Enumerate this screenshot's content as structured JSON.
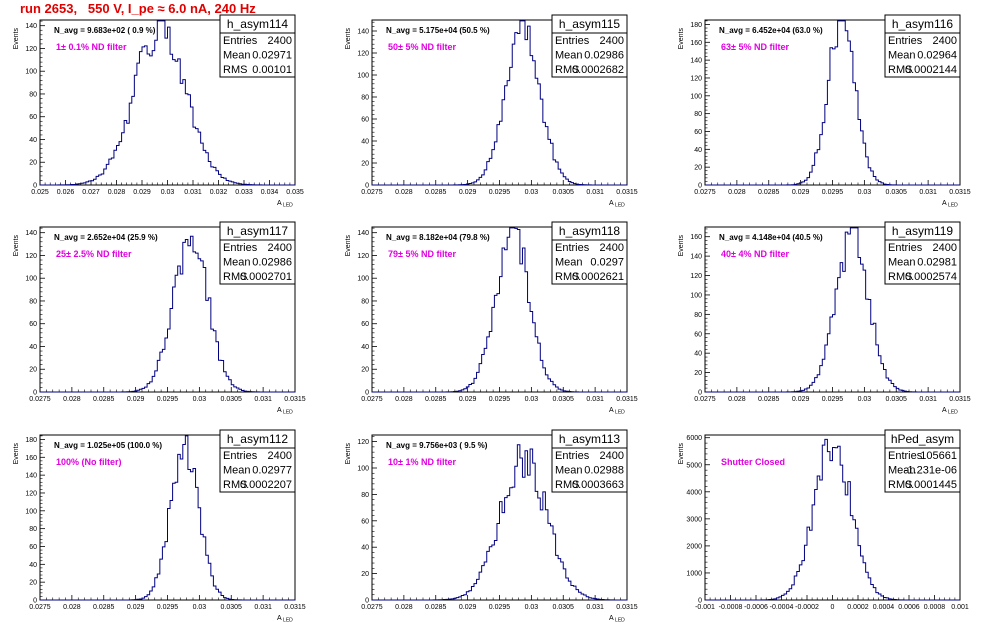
{
  "title": "run 2653,   550 V, I_pe ≈ 6.0 nA, 240 Hz",
  "chart_data": [
    {
      "type": "histogram",
      "name": "h_asym114",
      "n_avg": "N_avg = 9.683e+02 ( 0.9 %)",
      "annotation": "1± 0.1% ND filter",
      "stats": [
        [
          "Entries",
          "2400"
        ],
        [
          "Mean",
          "0.02971"
        ],
        [
          "RMS",
          "0.00101"
        ]
      ],
      "xlabel": "A_LED",
      "ylabel": "Events",
      "xlim": [
        0.025,
        0.035
      ],
      "ylim": [
        0,
        145
      ],
      "xticks": [
        0.025,
        0.026,
        0.027,
        0.028,
        0.029,
        0.03,
        0.031,
        0.032,
        0.033,
        0.034,
        0.035
      ],
      "xtick_labels": [
        "0.025",
        "0.026",
        "0.027",
        "0.028",
        "0.029",
        "0.03",
        "0.031",
        "0.032",
        "0.033",
        "0.034",
        "0.035"
      ],
      "yticks": [
        0,
        20,
        40,
        60,
        80,
        100,
        120,
        140
      ],
      "peak": 137,
      "mean": 0.02971,
      "sigma": 0.00101
    },
    {
      "type": "histogram",
      "name": "h_asym115",
      "n_avg": "N_avg = 5.175e+04 (50.5 %)",
      "annotation": "50± 5% ND filter",
      "stats": [
        [
          "Entries",
          "2400"
        ],
        [
          "Mean",
          "0.02986"
        ],
        [
          "RMS",
          "0.0002682"
        ]
      ],
      "xlabel": "A_LED",
      "ylabel": "Events",
      "xlim": [
        0.0275,
        0.0315
      ],
      "ylim": [
        0,
        150
      ],
      "xticks": [
        0.0275,
        0.028,
        0.0285,
        0.029,
        0.0295,
        0.03,
        0.0305,
        0.031,
        0.0315
      ],
      "xtick_labels": [
        "0.0275",
        "0.028",
        "0.0285",
        "0.029",
        "0.0295",
        "0.03",
        "0.0305",
        "0.031",
        "0.0315"
      ],
      "yticks": [
        0,
        20,
        40,
        60,
        80,
        100,
        120,
        140
      ],
      "peak": 146,
      "mean": 0.02986,
      "sigma": 0.0002682
    },
    {
      "type": "histogram",
      "name": "h_asym116",
      "n_avg": "N_avg = 6.452e+04 (63.0 %)",
      "annotation": "63± 5% ND filter",
      "stats": [
        [
          "Entries",
          "2400"
        ],
        [
          "Mean",
          "0.02964"
        ],
        [
          "RMS",
          "0.0002144"
        ]
      ],
      "xlabel": "A_LED",
      "ylabel": "Events",
      "xlim": [
        0.0275,
        0.0315
      ],
      "ylim": [
        0,
        185
      ],
      "xticks": [
        0.0275,
        0.028,
        0.0285,
        0.029,
        0.0295,
        0.03,
        0.0305,
        0.031,
        0.0315
      ],
      "xtick_labels": [
        "0.0275",
        "0.028",
        "0.0285",
        "0.029",
        "0.0295",
        "0.03",
        "0.0305",
        "0.031",
        "0.0315"
      ],
      "yticks": [
        0,
        20,
        40,
        60,
        80,
        100,
        120,
        140,
        160,
        180
      ],
      "peak": 182,
      "mean": 0.02964,
      "sigma": 0.0002144
    },
    {
      "type": "histogram",
      "name": "h_asym117",
      "n_avg": "N_avg = 2.652e+04 (25.9 %)",
      "annotation": "25± 2.5% ND filter",
      "stats": [
        [
          "Entries",
          "2400"
        ],
        [
          "Mean",
          "0.02986"
        ],
        [
          "RMS",
          "0.0002701"
        ]
      ],
      "xlabel": "A_LED",
      "ylabel": "Events",
      "xlim": [
        0.0275,
        0.0315
      ],
      "ylim": [
        0,
        145
      ],
      "xticks": [
        0.0275,
        0.028,
        0.0285,
        0.029,
        0.0295,
        0.03,
        0.0305,
        0.031,
        0.0315
      ],
      "xtick_labels": [
        "0.0275",
        "0.028",
        "0.0285",
        "0.029",
        "0.0295",
        "0.03",
        "0.0305",
        "0.031",
        "0.0315"
      ],
      "yticks": [
        0,
        20,
        40,
        60,
        80,
        100,
        120,
        140
      ],
      "peak": 136,
      "mean": 0.02986,
      "sigma": 0.0002701
    },
    {
      "type": "histogram",
      "name": "h_asym118",
      "n_avg": "N_avg = 8.182e+04 (79.8 %)",
      "annotation": "79± 5% ND filter",
      "stats": [
        [
          "Entries",
          "2400"
        ],
        [
          "Mean",
          "0.0297"
        ],
        [
          "RMS",
          "0.0002621"
        ]
      ],
      "xlabel": "A_LED",
      "ylabel": "Events",
      "xlim": [
        0.0275,
        0.0315
      ],
      "ylim": [
        0,
        145
      ],
      "xticks": [
        0.0275,
        0.028,
        0.0285,
        0.029,
        0.0295,
        0.03,
        0.0305,
        0.031,
        0.0315
      ],
      "xtick_labels": [
        "0.0275",
        "0.028",
        "0.0285",
        "0.029",
        "0.0295",
        "0.03",
        "0.0305",
        "0.031",
        "0.0315"
      ],
      "yticks": [
        0,
        20,
        40,
        60,
        80,
        100,
        120,
        140
      ],
      "peak": 142,
      "mean": 0.0297,
      "sigma": 0.0002621
    },
    {
      "type": "histogram",
      "name": "h_asym119",
      "n_avg": "N_avg = 4.148e+04 (40.5 %)",
      "annotation": "40± 4% ND filter",
      "stats": [
        [
          "Entries",
          "2400"
        ],
        [
          "Mean",
          "0.02981"
        ],
        [
          "RMS",
          "0.0002574"
        ]
      ],
      "xlabel": "A_LED",
      "ylabel": "Events",
      "xlim": [
        0.0275,
        0.0315
      ],
      "ylim": [
        0,
        170
      ],
      "xticks": [
        0.0275,
        0.028,
        0.0285,
        0.029,
        0.0295,
        0.03,
        0.0305,
        0.031,
        0.0315
      ],
      "xtick_labels": [
        "0.0275",
        "0.028",
        "0.0285",
        "0.029",
        "0.0295",
        "0.03",
        "0.0305",
        "0.031",
        "0.0315"
      ],
      "yticks": [
        0,
        20,
        40,
        60,
        80,
        100,
        120,
        140,
        160
      ],
      "peak": 163,
      "mean": 0.02981,
      "sigma": 0.0002574
    },
    {
      "type": "histogram",
      "name": "h_asym112",
      "n_avg": "N_avg = 1.025e+05 (100.0 %)",
      "annotation": "100% (No filter)",
      "stats": [
        [
          "Entries",
          "2400"
        ],
        [
          "Mean",
          "0.02977"
        ],
        [
          "RMS",
          "0.0002207"
        ]
      ],
      "xlabel": "A_LED",
      "ylabel": "Events",
      "xlim": [
        0.0275,
        0.0315
      ],
      "ylim": [
        0,
        185
      ],
      "xticks": [
        0.0275,
        0.028,
        0.0285,
        0.029,
        0.0295,
        0.03,
        0.0305,
        0.031,
        0.0315
      ],
      "xtick_labels": [
        "0.0275",
        "0.028",
        "0.0285",
        "0.029",
        "0.0295",
        "0.03",
        "0.0305",
        "0.031",
        "0.0315"
      ],
      "yticks": [
        0,
        20,
        40,
        60,
        80,
        100,
        120,
        140,
        160,
        180
      ],
      "peak": 175,
      "mean": 0.02977,
      "sigma": 0.0002207
    },
    {
      "type": "histogram",
      "name": "h_asym113",
      "n_avg": "N_avg = 9.756e+03 ( 9.5 %)",
      "annotation": "10± 1% ND filter",
      "stats": [
        [
          "Entries",
          "2400"
        ],
        [
          "Mean",
          "0.02988"
        ],
        [
          "RMS",
          "0.0003663"
        ]
      ],
      "xlabel": "A_LED",
      "ylabel": "Events",
      "xlim": [
        0.0275,
        0.0315
      ],
      "ylim": [
        0,
        125
      ],
      "xticks": [
        0.0275,
        0.028,
        0.0285,
        0.029,
        0.0295,
        0.03,
        0.0305,
        0.031,
        0.0315
      ],
      "xtick_labels": [
        "0.0275",
        "0.028",
        "0.0285",
        "0.029",
        "0.0295",
        "0.03",
        "0.0305",
        "0.031",
        "0.0315"
      ],
      "yticks": [
        0,
        20,
        40,
        60,
        80,
        100,
        120
      ],
      "peak": 106,
      "mean": 0.02988,
      "sigma": 0.0003663
    },
    {
      "type": "histogram",
      "name": "hPed_asym",
      "n_avg": "",
      "annotation": "Shutter Closed",
      "stats": [
        [
          "Entries",
          "105661"
        ],
        [
          "Mean",
          "-1.231e-06"
        ],
        [
          "RMS",
          "0.0001445"
        ]
      ],
      "xlabel": "",
      "ylabel": "Events",
      "xlim": [
        -0.001,
        0.001
      ],
      "ylim": [
        0,
        6100
      ],
      "xticks": [
        -0.001,
        -0.0008,
        -0.0006,
        -0.0004,
        -0.0002,
        0,
        0.0002,
        0.0004,
        0.0006,
        0.0008,
        0.001
      ],
      "xtick_labels": [
        "-0.001",
        "-0.0008",
        "-0.0006",
        "-0.0004",
        "-0.0002",
        "0",
        "0.0002",
        "0.0004",
        "0.0006",
        "0.0008",
        "0.001"
      ],
      "yticks": [
        0,
        1000,
        2000,
        3000,
        4000,
        5000,
        6000
      ],
      "peak": 5800,
      "mean": -1.231e-06,
      "sigma": 0.0001445
    }
  ]
}
